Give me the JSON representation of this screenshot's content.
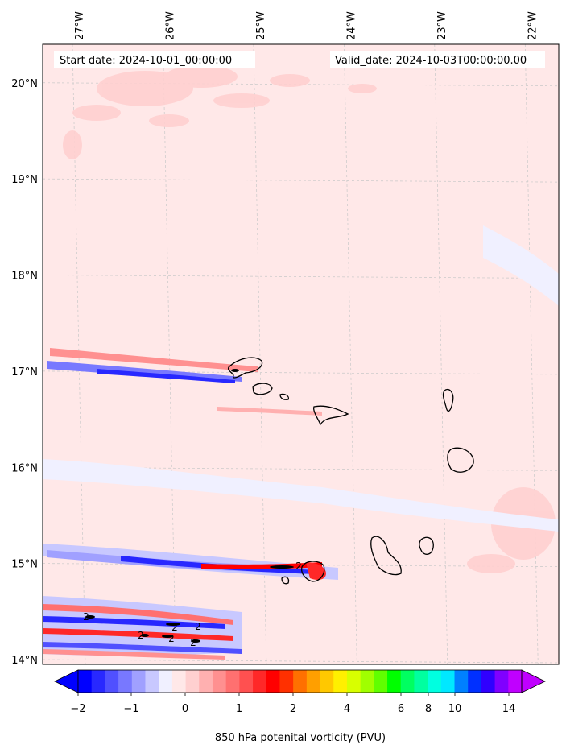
{
  "chart_data": {
    "type": "heatmap",
    "title": "",
    "start_date": "Start date: 2024-10-01_00:00:00",
    "valid_date": "Valid_date: 2024-10-03T00:00:00.00",
    "colorbar_label": "850 hPa potenital vorticity (PVU)",
    "lon_ticks": [
      "27°W",
      "26°W",
      "25°W",
      "24°W",
      "23°W",
      "22°W"
    ],
    "lat_ticks": [
      "20°N",
      "19°N",
      "18°N",
      "17°N",
      "16°N",
      "15°N",
      "14°N"
    ],
    "lon_values": [
      -27,
      -26,
      -25,
      -24,
      -23,
      -22
    ],
    "lat_values": [
      20,
      19,
      18,
      17,
      16,
      15,
      14
    ],
    "xlim": [
      -27.4,
      -21.7
    ],
    "ylim": [
      13.95,
      20.4
    ],
    "colorbar_ticks": [
      "−2",
      "−1",
      "0",
      "1",
      "2",
      "4",
      "6",
      "8",
      "10",
      "14"
    ],
    "contour_labels": [
      "2",
      "2",
      "2",
      "2",
      "2",
      "2",
      "2"
    ],
    "colors": {
      "background": "#ffe8e8",
      "negative": "#4040ff",
      "positive": "#ff2020",
      "coast": "#000000"
    },
    "colorbar_colors": [
      "#0000ff",
      "#2828ff",
      "#5050ff",
      "#7878ff",
      "#a0a0ff",
      "#c8c8ff",
      "#f0f0ff",
      "#ffe8e8",
      "#ffd0d0",
      "#ffb0b0",
      "#ff9090",
      "#ff7070",
      "#ff5050",
      "#ff2828",
      "#ff0000",
      "#ff3000",
      "#ff7000",
      "#ff9f00",
      "#ffc800",
      "#fff000",
      "#d8ff00",
      "#a0ff00",
      "#60ff00",
      "#00ff00",
      "#00ff60",
      "#00ffa0",
      "#00ffe0",
      "#00e8ff",
      "#0080ff",
      "#0030ff",
      "#3000ff",
      "#8000ff",
      "#c000ff"
    ]
  }
}
